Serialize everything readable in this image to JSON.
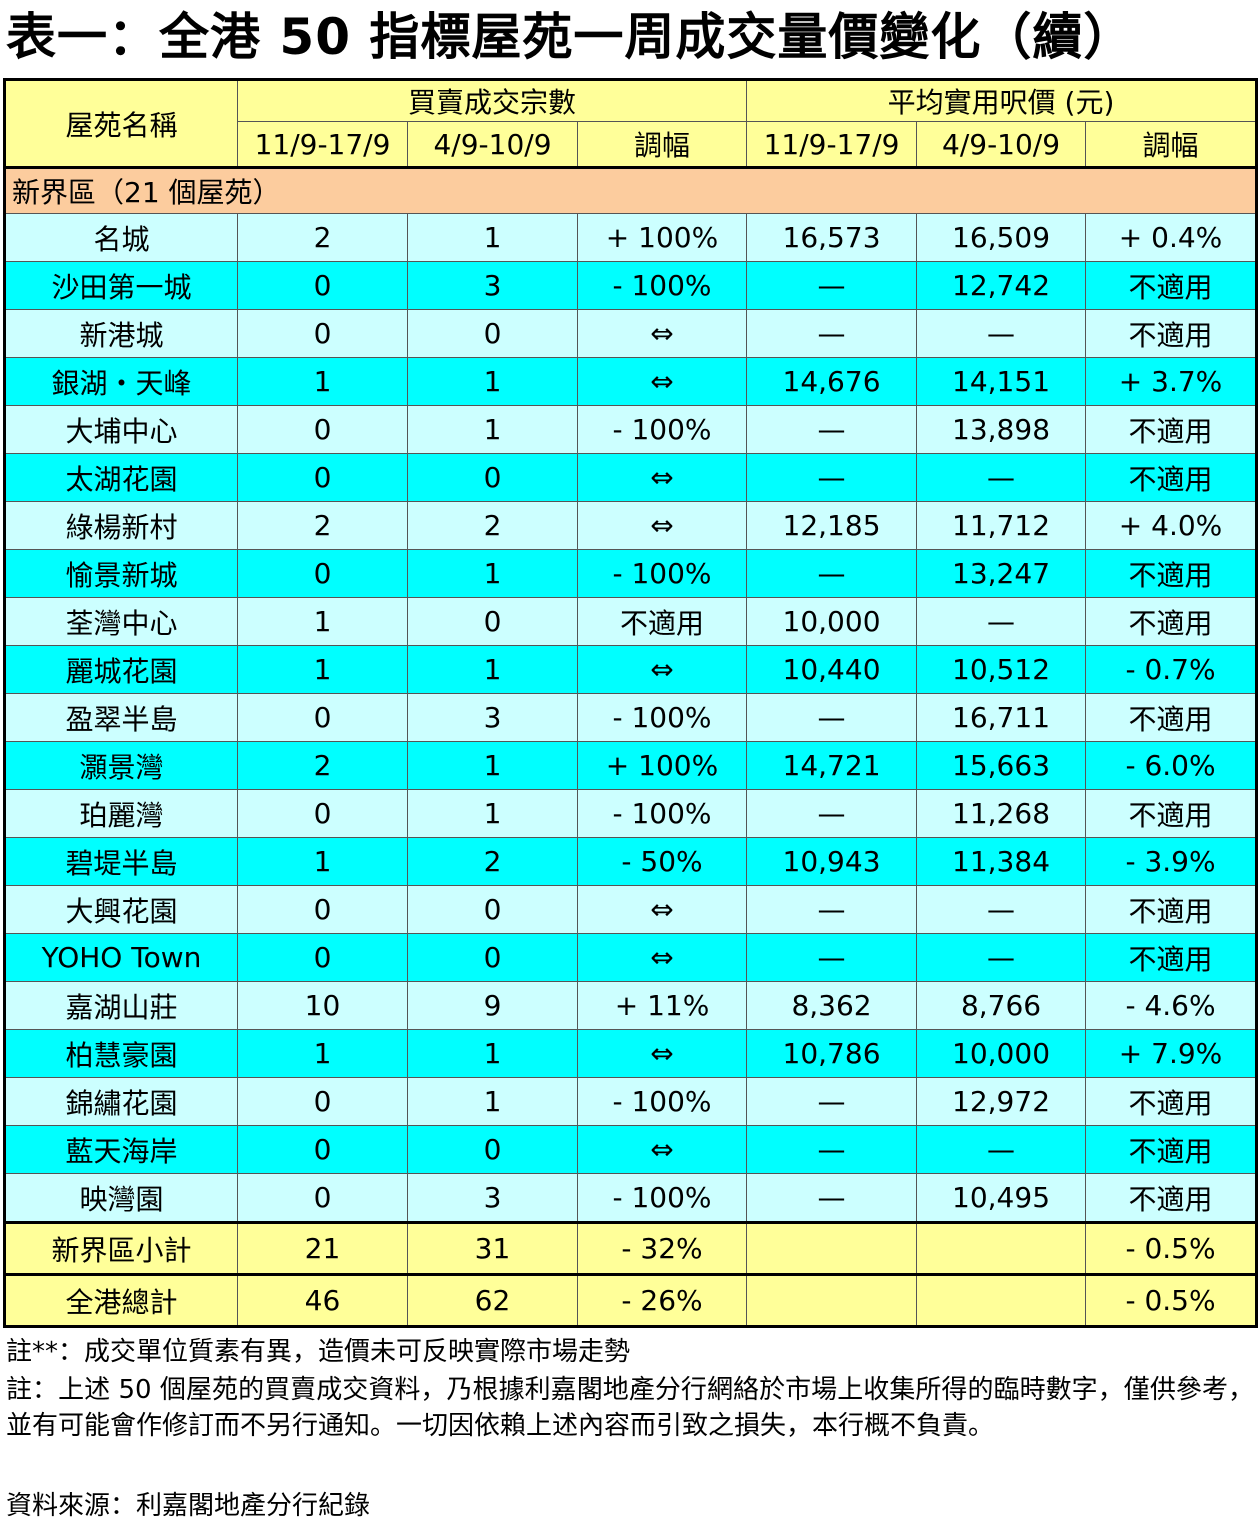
{
  "title": "表一：全港 50 指標屋苑一周成交量價變化（續）",
  "headers": {
    "estate": "屋苑名稱",
    "transactions": "買賣成交宗數",
    "price": "平均實用呎價 (元)",
    "period_current": "11/9-17/9",
    "period_previous": "4/9-10/9",
    "change": "調幅"
  },
  "region_label": "新界區（21 個屋苑）",
  "rows": [
    {
      "name": "名城",
      "t_cur": "2",
      "t_prev": "1",
      "t_chg": "+ 100%",
      "p_cur": "16,573",
      "p_prev": "16,509",
      "p_chg": "+ 0.4%"
    },
    {
      "name": "沙田第一城",
      "t_cur": "0",
      "t_prev": "3",
      "t_chg": "- 100%",
      "p_cur": "—",
      "p_prev": "12,742",
      "p_chg": "不適用"
    },
    {
      "name": "新港城",
      "t_cur": "0",
      "t_prev": "0",
      "t_chg": "⇔",
      "p_cur": "—",
      "p_prev": "—",
      "p_chg": "不適用"
    },
    {
      "name": "銀湖・天峰",
      "t_cur": "1",
      "t_prev": "1",
      "t_chg": "⇔",
      "p_cur": "14,676",
      "p_prev": "14,151",
      "p_chg": "+ 3.7%"
    },
    {
      "name": "大埔中心",
      "t_cur": "0",
      "t_prev": "1",
      "t_chg": "- 100%",
      "p_cur": "—",
      "p_prev": "13,898",
      "p_chg": "不適用"
    },
    {
      "name": "太湖花園",
      "t_cur": "0",
      "t_prev": "0",
      "t_chg": "⇔",
      "p_cur": "—",
      "p_prev": "—",
      "p_chg": "不適用"
    },
    {
      "name": "綠楊新村",
      "t_cur": "2",
      "t_prev": "2",
      "t_chg": "⇔",
      "p_cur": "12,185",
      "p_prev": "11,712",
      "p_chg": "+ 4.0%"
    },
    {
      "name": "愉景新城",
      "t_cur": "0",
      "t_prev": "1",
      "t_chg": "- 100%",
      "p_cur": "—",
      "p_prev": "13,247",
      "p_chg": "不適用"
    },
    {
      "name": "荃灣中心",
      "t_cur": "1",
      "t_prev": "0",
      "t_chg": "不適用",
      "p_cur": "10,000",
      "p_prev": "—",
      "p_chg": "不適用"
    },
    {
      "name": "麗城花園",
      "t_cur": "1",
      "t_prev": "1",
      "t_chg": "⇔",
      "p_cur": "10,440",
      "p_prev": "10,512",
      "p_chg": "- 0.7%"
    },
    {
      "name": "盈翠半島",
      "t_cur": "0",
      "t_prev": "3",
      "t_chg": "- 100%",
      "p_cur": "—",
      "p_prev": "16,711",
      "p_chg": "不適用"
    },
    {
      "name": "灝景灣",
      "t_cur": "2",
      "t_prev": "1",
      "t_chg": "+ 100%",
      "p_cur": "14,721",
      "p_prev": "15,663",
      "p_chg": "- 6.0%"
    },
    {
      "name": "珀麗灣",
      "t_cur": "0",
      "t_prev": "1",
      "t_chg": "- 100%",
      "p_cur": "—",
      "p_prev": "11,268",
      "p_chg": "不適用"
    },
    {
      "name": "碧堤半島",
      "t_cur": "1",
      "t_prev": "2",
      "t_chg": "- 50%",
      "p_cur": "10,943",
      "p_prev": "11,384",
      "p_chg": "- 3.9%"
    },
    {
      "name": "大興花園",
      "t_cur": "0",
      "t_prev": "0",
      "t_chg": "⇔",
      "p_cur": "—",
      "p_prev": "—",
      "p_chg": "不適用"
    },
    {
      "name": "YOHO Town",
      "t_cur": "0",
      "t_prev": "0",
      "t_chg": "⇔",
      "p_cur": "—",
      "p_prev": "—",
      "p_chg": "不適用"
    },
    {
      "name": "嘉湖山莊",
      "t_cur": "10",
      "t_prev": "9",
      "t_chg": "+ 11%",
      "p_cur": "8,362",
      "p_prev": "8,766",
      "p_chg": "- 4.6%"
    },
    {
      "name": "柏慧豪園",
      "t_cur": "1",
      "t_prev": "1",
      "t_chg": "⇔",
      "p_cur": "10,786",
      "p_prev": "10,000",
      "p_chg": "+ 7.9%"
    },
    {
      "name": "錦繡花園",
      "t_cur": "0",
      "t_prev": "1",
      "t_chg": "- 100%",
      "p_cur": "—",
      "p_prev": "12,972",
      "p_chg": "不適用"
    },
    {
      "name": "藍天海岸",
      "t_cur": "0",
      "t_prev": "0",
      "t_chg": "⇔",
      "p_cur": "—",
      "p_prev": "—",
      "p_chg": "不適用"
    },
    {
      "name": "映灣園",
      "t_cur": "0",
      "t_prev": "3",
      "t_chg": "- 100%",
      "p_cur": "—",
      "p_prev": "10,495",
      "p_chg": "不適用"
    }
  ],
  "subtotal": {
    "name": "新界區小計",
    "t_cur": "21",
    "t_prev": "31",
    "t_chg": "- 32%",
    "p_cur": "",
    "p_prev": "",
    "p_chg": "- 0.5%"
  },
  "total": {
    "name": "全港總計",
    "t_cur": "46",
    "t_prev": "62",
    "t_chg": "- 26%",
    "p_cur": "",
    "p_prev": "",
    "p_chg": "- 0.5%"
  },
  "notes": {
    "note1": "註**：成交單位質素有異，造價未可反映實際市場走勢",
    "note2": "註：上述 50 個屋苑的買賣成交資料，乃根據利嘉閣地產分行網絡於市場上收集所得的臨時數字，僅供參考，並有可能會作修訂而不另行通知。一切因依賴上述內容而引致之損失，本行概不負責。",
    "source": "資料來源：利嘉閣地產分行紀錄"
  },
  "colors": {
    "header_bg": "#ffff99",
    "region_bg": "#fccc9e",
    "row_light": "#ccffff",
    "row_dark": "#00ffff"
  }
}
